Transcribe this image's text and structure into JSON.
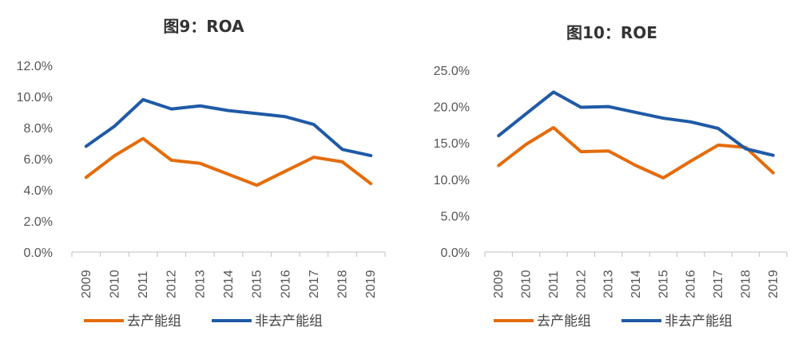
{
  "chart_data": [
    {
      "type": "line",
      "title": "图9：ROA",
      "categories": [
        "2009",
        "2010",
        "2011",
        "2012",
        "2013",
        "2014",
        "2015",
        "2016",
        "2017",
        "2018",
        "2019"
      ],
      "yticks": [
        "0.0%",
        "2.0%",
        "4.0%",
        "6.0%",
        "8.0%",
        "10.0%",
        "12.0%"
      ],
      "ylim": [
        0,
        12
      ],
      "series": [
        {
          "name": "去产能组",
          "color": "#E46C0A",
          "values": [
            4.8,
            6.2,
            7.3,
            5.9,
            5.7,
            5.0,
            4.3,
            5.2,
            6.1,
            5.8,
            4.4
          ]
        },
        {
          "name": "非去产能组",
          "color": "#1F5AA6",
          "values": [
            6.8,
            8.1,
            9.8,
            9.2,
            9.4,
            9.1,
            8.9,
            8.7,
            8.2,
            6.6,
            6.2
          ]
        }
      ],
      "legend": "bottom",
      "grid": false
    },
    {
      "type": "line",
      "title": "图10：ROE",
      "categories": [
        "2009",
        "2010",
        "2011",
        "2012",
        "2013",
        "2014",
        "2015",
        "2016",
        "2017",
        "2018",
        "2019"
      ],
      "yticks": [
        "0.0%",
        "5.0%",
        "10.0%",
        "15.0%",
        "20.0%",
        "25.0%"
      ],
      "ylim": [
        0,
        25
      ],
      "series": [
        {
          "name": "去产能组",
          "color": "#E46C0A",
          "values": [
            11.9,
            14.8,
            17.1,
            13.8,
            13.9,
            11.9,
            10.2,
            12.5,
            14.7,
            14.4,
            10.9
          ]
        },
        {
          "name": "非去产能组",
          "color": "#1F5AA6",
          "values": [
            16.0,
            19.0,
            22.0,
            19.9,
            20.0,
            19.2,
            18.4,
            17.9,
            17.0,
            14.2,
            13.3
          ]
        }
      ],
      "legend": "bottom",
      "grid": false
    }
  ]
}
